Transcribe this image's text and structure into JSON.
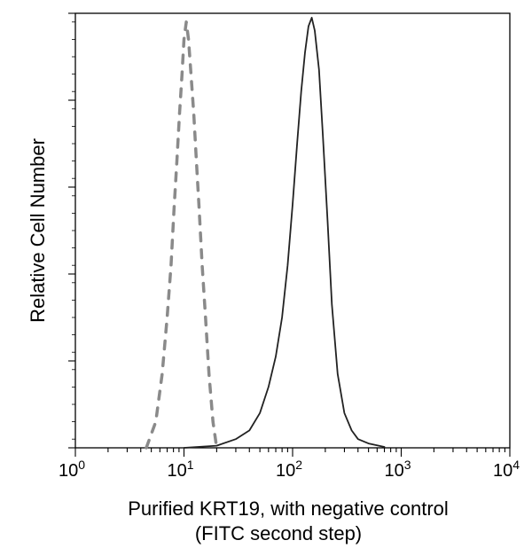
{
  "chart_data": {
    "type": "line",
    "ylabel": "Relative Cell Number",
    "xlabel_lines": [
      "Purified KRT19, with negative control",
      "(FITC second step)"
    ],
    "x_scale": "log",
    "xlim": [
      1,
      10000
    ],
    "ylim": [
      0,
      100
    ],
    "x_ticks": [
      {
        "base": "10",
        "exp": "0",
        "value": 1
      },
      {
        "base": "10",
        "exp": "1",
        "value": 10
      },
      {
        "base": "10",
        "exp": "2",
        "value": 100
      },
      {
        "base": "10",
        "exp": "3",
        "value": 1000
      },
      {
        "base": "10",
        "exp": "4",
        "value": 10000
      }
    ],
    "grid": false,
    "legend": "none",
    "series": [
      {
        "style": "dashed",
        "color": "#8a8a8a",
        "x": [
          4.5,
          5.5,
          6.3,
          7.0,
          7.6,
          8.1,
          8.6,
          9.1,
          9.6,
          10.0,
          10.5,
          11.0,
          11.6,
          12.3,
          13.0,
          13.8,
          14.7,
          15.8,
          17.0,
          18.5,
          20.0
        ],
        "y": [
          0,
          6,
          17,
          30,
          42,
          55,
          66,
          77,
          86,
          94,
          98,
          94,
          86,
          77,
          66,
          55,
          42,
          30,
          17,
          6,
          0
        ]
      },
      {
        "style": "solid",
        "color": "#222222",
        "x": [
          10,
          20,
          30,
          40,
          50,
          60,
          70,
          80,
          90,
          100,
          110,
          120,
          130,
          140,
          150,
          160,
          175,
          190,
          210,
          230,
          260,
          300,
          350,
          400,
          500,
          700
        ],
        "y": [
          0,
          0.5,
          2,
          4,
          8,
          14,
          21,
          30,
          42,
          56,
          70,
          82,
          91,
          97,
          99,
          96,
          87,
          72,
          52,
          33,
          17,
          8,
          4,
          2,
          1,
          0.2
        ]
      }
    ]
  }
}
